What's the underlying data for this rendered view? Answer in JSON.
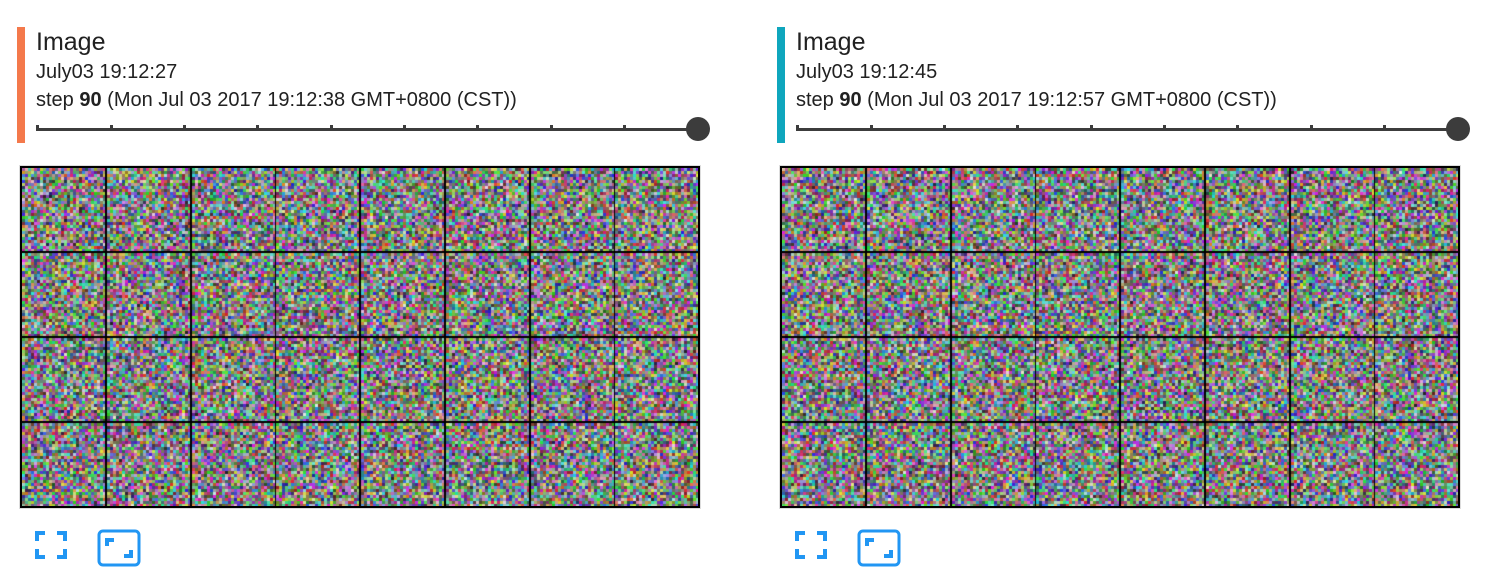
{
  "colors": {
    "left_accent": "#f4794b",
    "right_accent": "#0fa6bd",
    "icon_blue": "#2196f3",
    "slider": "#3c3c3c"
  },
  "cards": [
    {
      "title": "Image",
      "run": "July03 19:12:27",
      "step_prefix": "step ",
      "step": "90",
      "step_time": " (Mon Jul 03 2017 19:12:38 GMT+0800 (CST))",
      "slider_position": 1.0,
      "grid": {
        "rows": 4,
        "cols": 8
      },
      "controls": {
        "fullscreen_icon": "fullscreen-icon",
        "actual_size_icon": "actual-size-icon"
      }
    },
    {
      "title": "Image",
      "run": "July03 19:12:45",
      "step_prefix": "step ",
      "step": "90",
      "step_time": " (Mon Jul 03 2017 19:12:57 GMT+0800 (CST))",
      "slider_position": 1.0,
      "grid": {
        "rows": 4,
        "cols": 8
      },
      "controls": {
        "fullscreen_icon": "fullscreen-icon",
        "actual_size_icon": "actual-size-icon"
      }
    }
  ]
}
